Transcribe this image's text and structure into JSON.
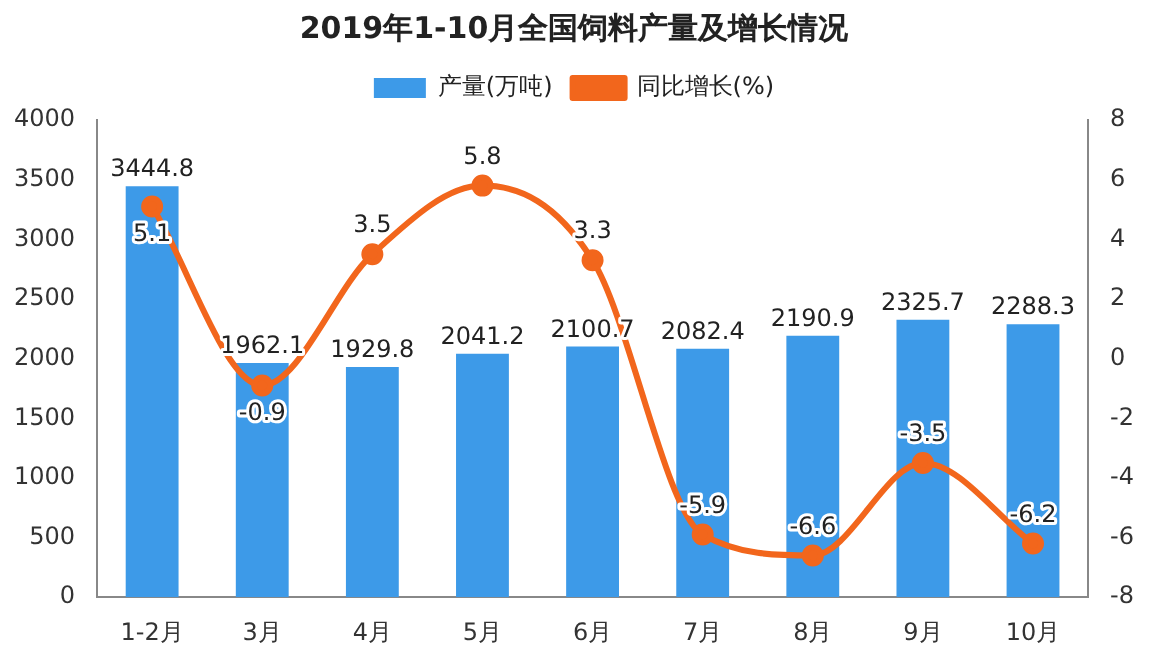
{
  "chart_data": {
    "type": "bar",
    "title": "2019年1-10月全国饲料产量及增长情况",
    "categories": [
      "1-2月",
      "3月",
      "4月",
      "5月",
      "6月",
      "7月",
      "8月",
      "9月",
      "10月"
    ],
    "series": [
      {
        "name": "产量(万吨)",
        "color": "#3d9ae8",
        "values": [
          3444.8,
          1962.1,
          1929.8,
          2041.2,
          2100.7,
          2082.4,
          2190.9,
          2325.7,
          2288.3
        ]
      },
      {
        "name": "同比增长(%)",
        "type": "line",
        "axis": "y2",
        "color": "#f2661c",
        "values": [
          5.1,
          -0.9,
          3.5,
          5.8,
          3.3,
          -5.9,
          -6.6,
          -3.5,
          -6.2
        ]
      }
    ],
    "ylim": [
      0,
      4000
    ],
    "yticks": [
      0,
      500,
      1000,
      1500,
      2000,
      2500,
      3000,
      3500,
      4000
    ],
    "y2lim": [
      -8,
      8
    ],
    "y2ticks": [
      -8,
      -6,
      -4,
      -2,
      0,
      2,
      4,
      6,
      8
    ],
    "legend": "top",
    "marker": "circle",
    "line_style": "solid",
    "data_labels": true,
    "grid": false
  }
}
